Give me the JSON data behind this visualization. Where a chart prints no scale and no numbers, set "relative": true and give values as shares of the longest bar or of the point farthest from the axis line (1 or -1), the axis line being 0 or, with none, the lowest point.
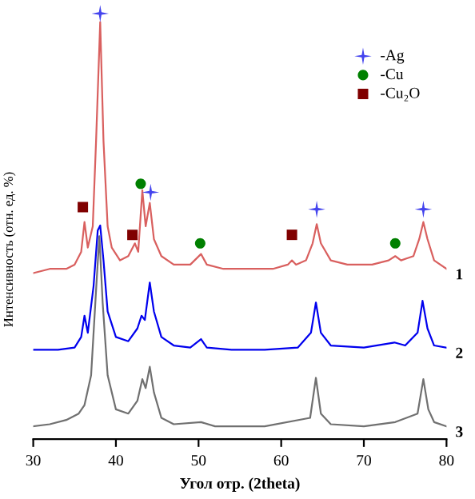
{
  "chart_data": {
    "type": "line",
    "relative": true,
    "xlabel": "Угол отр. (2theta)",
    "ylabel": "Интенсивность (отн. ед. %)",
    "xlim": [
      30,
      80
    ],
    "xticks": [
      30,
      40,
      50,
      60,
      70,
      80
    ],
    "legend": "top right",
    "series": [
      {
        "name": "1",
        "color": "#d9605f",
        "x": [
          30,
          32,
          34,
          35,
          35.8,
          36.2,
          36.6,
          37.2,
          37.6,
          38.1,
          38.5,
          39,
          39.5,
          40.5,
          41.5,
          42.3,
          42.7,
          43.2,
          43.6,
          44.1,
          44.6,
          45.5,
          47,
          49,
          50.3,
          51,
          53,
          56,
          59,
          60.8,
          61.3,
          61.8,
          63,
          63.8,
          64.3,
          64.8,
          66,
          68,
          71,
          73,
          73.8,
          74.5,
          76,
          76.7,
          77.2,
          77.7,
          78.5,
          80
        ],
        "values": [
          0.39,
          0.4,
          0.4,
          0.41,
          0.44,
          0.51,
          0.45,
          0.5,
          0.7,
          0.98,
          0.7,
          0.5,
          0.45,
          0.42,
          0.43,
          0.46,
          0.44,
          0.585,
          0.5,
          0.555,
          0.47,
          0.43,
          0.41,
          0.41,
          0.435,
          0.41,
          0.4,
          0.4,
          0.4,
          0.41,
          0.42,
          0.41,
          0.42,
          0.46,
          0.505,
          0.46,
          0.42,
          0.41,
          0.41,
          0.42,
          0.43,
          0.42,
          0.43,
          0.47,
          0.51,
          0.47,
          0.42,
          0.4
        ]
      },
      {
        "name": "2",
        "color": "#0000ee",
        "x": [
          30,
          33,
          35,
          35.8,
          36.2,
          36.6,
          37.3,
          37.8,
          38.1,
          38.5,
          39,
          40,
          41.5,
          42.6,
          43.1,
          43.5,
          44.1,
          44.6,
          45.5,
          47,
          49,
          50.3,
          51,
          54,
          58,
          62,
          63.6,
          64.2,
          64.8,
          66,
          70,
          73.7,
          75,
          76.5,
          77.1,
          77.7,
          78.5,
          80
        ],
        "values": [
          0.21,
          0.21,
          0.215,
          0.24,
          0.29,
          0.25,
          0.36,
          0.49,
          0.502,
          0.42,
          0.3,
          0.24,
          0.23,
          0.26,
          0.29,
          0.28,
          0.368,
          0.3,
          0.24,
          0.22,
          0.215,
          0.235,
          0.215,
          0.21,
          0.21,
          0.215,
          0.25,
          0.321,
          0.25,
          0.22,
          0.215,
          0.227,
          0.22,
          0.25,
          0.325,
          0.26,
          0.22,
          0.215
        ]
      },
      {
        "name": "3",
        "color": "#707070",
        "x": [
          30,
          32,
          34,
          35.5,
          36.2,
          37,
          37.6,
          38,
          38.4,
          39,
          40,
          41.5,
          42.6,
          43.2,
          43.6,
          44.1,
          44.6,
          45.5,
          47,
          50.3,
          52,
          58,
          63.5,
          64.2,
          64.8,
          66,
          70,
          73.8,
          76.5,
          77.2,
          77.8,
          78.5,
          80
        ],
        "values": [
          0.03,
          0.035,
          0.045,
          0.06,
          0.08,
          0.15,
          0.35,
          0.477,
          0.32,
          0.15,
          0.07,
          0.06,
          0.09,
          0.141,
          0.12,
          0.17,
          0.11,
          0.05,
          0.035,
          0.04,
          0.03,
          0.03,
          0.05,
          0.144,
          0.06,
          0.035,
          0.03,
          0.04,
          0.06,
          0.141,
          0.07,
          0.04,
          0.03
        ]
      },
      {
        "name": "-Ag",
        "type": "scatter",
        "marker": "star",
        "color": "#4444ee",
        "x": [
          38.1,
          44.2,
          64.3,
          77.2
        ],
        "values": [
          1.0,
          0.58,
          0.54,
          0.54
        ]
      },
      {
        "name": "-Cu",
        "type": "scatter",
        "marker": "circle",
        "color": "#008000",
        "x": [
          43.0,
          50.2,
          73.8
        ],
        "values": [
          0.6,
          0.46,
          0.46
        ]
      },
      {
        "name": "-Cu₂O",
        "type": "scatter",
        "marker": "square",
        "color": "#800000",
        "x": [
          36.0,
          42.0,
          61.3
        ],
        "values": [
          0.545,
          0.48,
          0.48
        ]
      }
    ]
  }
}
